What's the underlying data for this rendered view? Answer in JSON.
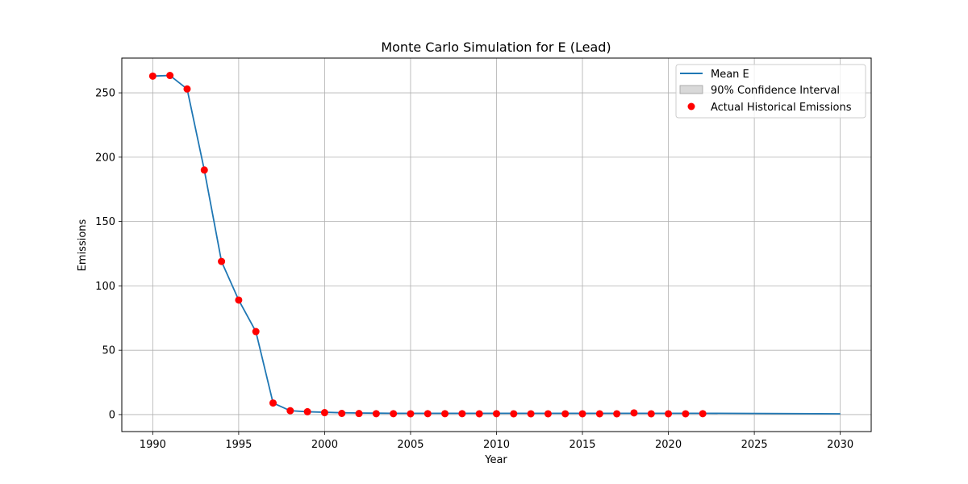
{
  "chart_data": {
    "type": "line",
    "title": "Monte Carlo Simulation for E (Lead)",
    "xlabel": "Year",
    "ylabel": "Emissions",
    "xlim": [
      1988.2,
      2031.8
    ],
    "ylim": [
      -13.2,
      277
    ],
    "xticks": [
      1990,
      1995,
      2000,
      2005,
      2010,
      2015,
      2020,
      2025,
      2030
    ],
    "yticks": [
      0,
      50,
      100,
      150,
      200,
      250
    ],
    "grid": true,
    "legend_position": "upper right",
    "colors": {
      "mean_line": "#1f77b4",
      "confidence": "#bfbfbf",
      "actual": "#ff0000",
      "grid": "#b0b0b0"
    },
    "series": [
      {
        "name": "Mean E",
        "kind": "line",
        "x": [
          1990,
          1991,
          1992,
          1993,
          1994,
          1995,
          1996,
          1997,
          1998,
          1999,
          2000,
          2001,
          2002,
          2003,
          2004,
          2005,
          2006,
          2007,
          2008,
          2009,
          2010,
          2011,
          2012,
          2013,
          2014,
          2015,
          2016,
          2017,
          2018,
          2019,
          2020,
          2021,
          2022,
          2030
        ],
        "y": [
          263,
          263.5,
          253,
          190,
          119,
          89,
          64.5,
          9,
          3,
          2.2,
          1.8,
          1.4,
          1.2,
          1.1,
          1.0,
          1.0,
          1.0,
          1.0,
          1.0,
          1.0,
          1.0,
          1.0,
          1.0,
          1.0,
          1.0,
          1.0,
          1.0,
          1.0,
          1.0,
          1.0,
          1.0,
          1.0,
          1.0,
          0.6
        ]
      },
      {
        "name": "90% Confidence Interval",
        "kind": "band",
        "x": [],
        "lower": [],
        "upper": []
      },
      {
        "name": "Actual Historical Emissions",
        "kind": "scatter",
        "x": [
          1990,
          1991,
          1992,
          1993,
          1994,
          1995,
          1996,
          1997,
          1998,
          1999,
          2000,
          2001,
          2002,
          2003,
          2004,
          2005,
          2006,
          2007,
          2008,
          2009,
          2010,
          2011,
          2012,
          2013,
          2014,
          2015,
          2016,
          2017,
          2018,
          2019,
          2020,
          2021,
          2022
        ],
        "y": [
          263,
          263.5,
          253,
          190,
          119,
          89,
          64.5,
          9,
          3,
          2.2,
          1.5,
          0.9,
          0.8,
          0.7,
          0.7,
          0.6,
          0.7,
          0.7,
          0.7,
          0.6,
          0.7,
          0.6,
          0.6,
          0.6,
          0.6,
          0.6,
          0.6,
          0.6,
          1.3,
          0.6,
          0.6,
          0.6,
          0.7
        ]
      }
    ]
  }
}
